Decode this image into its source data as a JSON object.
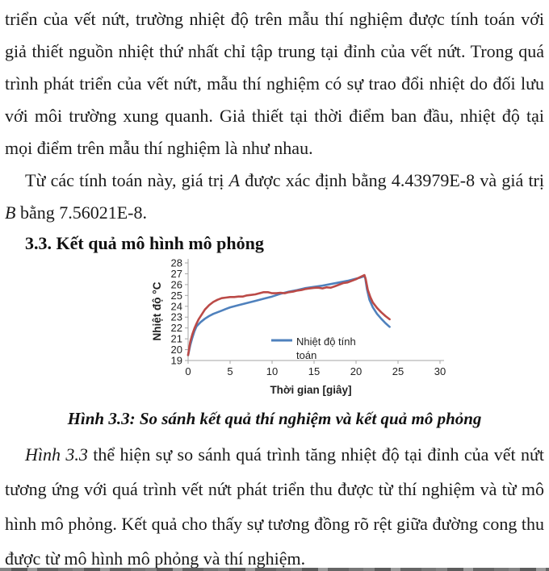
{
  "document": {
    "paragraph_1": "triển của vết nứt, trường nhiệt độ trên mẫu thí nghiệm được tính toán với giả thiết nguồn nhiệt thứ nhất chỉ tập trung tại đỉnh của vết nứt. Trong quá trình phát triển của vết nứt, mẫu thí nghiệm có sự trao đổi nhiệt do đối lưu với môi trường xung quanh. Giả thiết tại thời điểm ban đầu, nhiệt độ tại mọi điểm trên mẫu thí nghiệm là như nhau.",
    "paragraph_2": {
      "seg_1": "Từ các tính toán này, giá trị ",
      "var_a": "A",
      "seg_2": " được xác định bằng 4.43979E-8 và giá trị ",
      "var_b": "B",
      "seg_3": " bằng 7.56021E-8."
    },
    "heading_3_3": "3.3. Kết quả mô hình mô phỏng",
    "figure_caption": "Hình 3.3: So sánh kết quả thí nghiệm và kết quả mô phỏng",
    "paragraph_3": {
      "ref": "Hình 3.3",
      "rest": " thể hiện sự so sánh quá trình tăng nhiệt độ tại đỉnh của vết nứt tương ứng với quá trình vết nứt phát triển thu được từ thí nghiệm và từ mô hình mô phỏng. Kết quả cho thấy sự tương đồng rõ rệt giữa đường cong thu được từ mô hình mô phỏng và thí nghiệm."
    }
  },
  "chart_data": {
    "type": "line",
    "title": "",
    "xlabel": "Thời gian [giây]",
    "ylabel": "Nhiệt độ °C",
    "xlim": [
      0,
      30
    ],
    "ylim": [
      19,
      28
    ],
    "xticks": [
      0,
      5,
      10,
      15,
      20,
      25,
      30
    ],
    "yticks": [
      19,
      20,
      21,
      22,
      23,
      24,
      25,
      26,
      27,
      28
    ],
    "grid": false,
    "legend": {
      "position": "inside-bottom-center",
      "entries": [
        {
          "label": "Nhiệt độ tính toán",
          "label_lines": [
            "Nhiệt độ tính",
            "toán"
          ],
          "color": "#4F81BD"
        }
      ]
    },
    "series": [
      {
        "name": "Nhiệt độ tính toán",
        "color": "#4F81BD",
        "x": [
          0,
          0.25,
          0.5,
          0.75,
          1,
          1.5,
          2,
          2.5,
          3,
          3.5,
          4,
          4.5,
          5,
          6,
          7,
          8,
          9,
          10,
          11,
          12,
          13,
          14,
          15,
          16,
          17,
          18,
          19,
          20,
          20.5,
          21,
          21.1,
          21.3,
          21.6,
          22,
          22.5,
          23,
          23.5,
          24
        ],
        "y": [
          19.5,
          20.4,
          21.1,
          21.7,
          22.15,
          22.55,
          22.85,
          23.1,
          23.3,
          23.45,
          23.6,
          23.75,
          23.9,
          24.1,
          24.3,
          24.5,
          24.7,
          24.9,
          25.15,
          25.35,
          25.5,
          25.68,
          25.8,
          25.9,
          26.05,
          26.2,
          26.35,
          26.55,
          26.65,
          26.78,
          26.6,
          25.6,
          24.6,
          23.9,
          23.3,
          22.85,
          22.45,
          22.1
        ]
      },
      {
        "name": "",
        "color": "#BB4A47",
        "x": [
          0,
          0.25,
          0.5,
          0.75,
          1,
          1.25,
          1.5,
          2,
          2.5,
          3,
          3.5,
          4,
          4.5,
          5,
          5.5,
          6,
          6.5,
          7,
          7.5,
          8,
          8.5,
          9,
          9.5,
          10,
          10.5,
          11,
          11.5,
          12,
          12.5,
          13,
          13.5,
          14,
          14.5,
          15,
          15.5,
          16,
          16.5,
          17,
          17.5,
          18,
          18.5,
          19,
          19.5,
          20,
          20.5,
          20.8,
          21,
          21.15,
          21.4,
          21.7,
          22,
          22.5,
          23,
          23.5,
          24
        ],
        "y": [
          19.5,
          20.7,
          21.4,
          21.95,
          22.4,
          22.8,
          23.1,
          23.7,
          24.1,
          24.4,
          24.6,
          24.75,
          24.8,
          24.85,
          24.85,
          24.9,
          24.9,
          25.0,
          25.05,
          25.1,
          25.2,
          25.3,
          25.3,
          25.2,
          25.2,
          25.25,
          25.2,
          25.3,
          25.35,
          25.45,
          25.5,
          25.6,
          25.65,
          25.7,
          25.72,
          25.65,
          25.75,
          25.72,
          25.85,
          26.0,
          26.15,
          26.2,
          26.35,
          26.5,
          26.7,
          26.8,
          26.88,
          26.5,
          25.5,
          24.85,
          24.35,
          23.85,
          23.45,
          23.1,
          22.8
        ]
      }
    ]
  },
  "colors": {
    "text": "#1a1a1a",
    "axis": "#a6a6a6",
    "series_calculated": "#4F81BD",
    "series_experiment": "#BB4A47",
    "scan_edge": "#4a4a4a"
  }
}
